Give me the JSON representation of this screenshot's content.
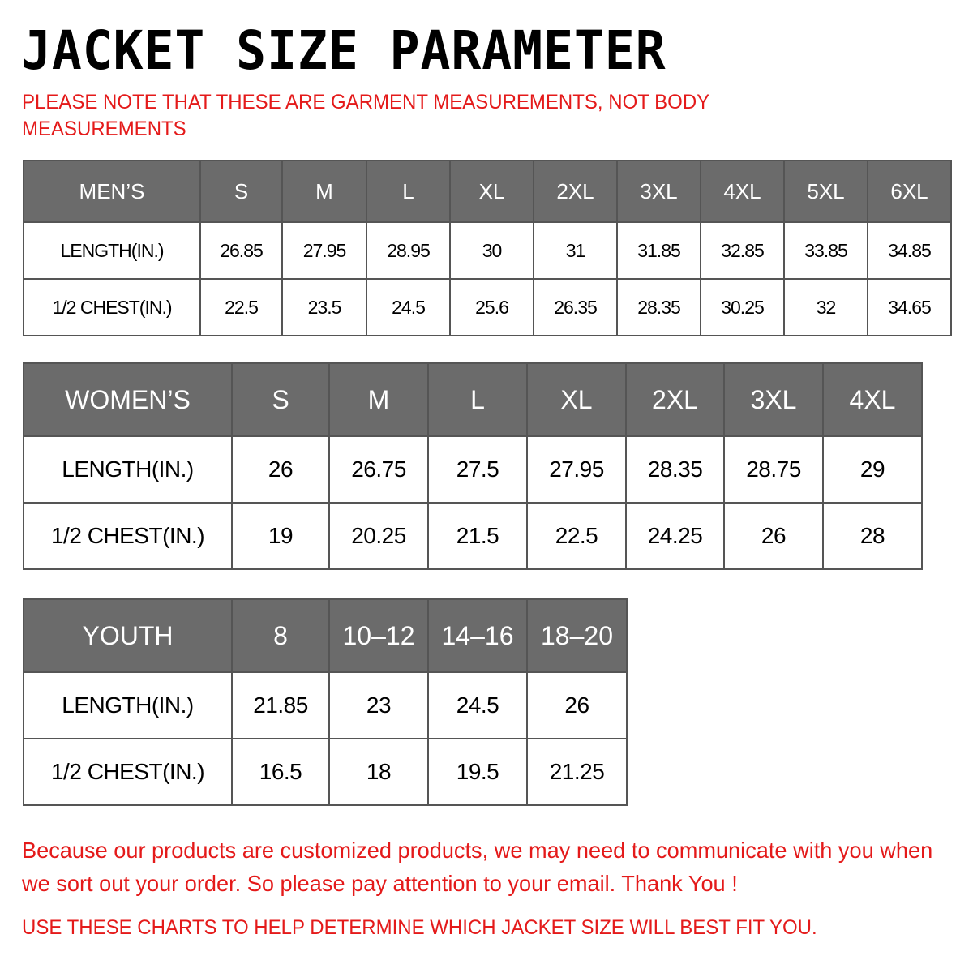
{
  "title": "JACKET SIZE PARAMETER",
  "note": "PLEASE NOTE THAT THESE ARE GARMENT MEASUREMENTS, NOT BODY MEASUREMENTS",
  "mens": {
    "header": "MEN’S",
    "sizes": [
      "S",
      "M",
      "L",
      "XL",
      "2XL",
      "3XL",
      "4XL",
      "5XL",
      "6XL"
    ],
    "rows": [
      {
        "label": "LENGTH(IN.)",
        "values": [
          "26.85",
          "27.95",
          "28.95",
          "30",
          "31",
          "31.85",
          "32.85",
          "33.85",
          "34.85"
        ]
      },
      {
        "label": "1/2 CHEST(IN.)",
        "values": [
          "22.5",
          "23.5",
          "24.5",
          "25.6",
          "26.35",
          "28.35",
          "30.25",
          "32",
          "34.65"
        ]
      }
    ]
  },
  "womens": {
    "header": "WOMEN’S",
    "sizes": [
      "S",
      "M",
      "L",
      "XL",
      "2XL",
      "3XL",
      "4XL"
    ],
    "rows": [
      {
        "label": "LENGTH(IN.)",
        "values": [
          "26",
          "26.75",
          "27.5",
          "27.95",
          "28.35",
          "28.75",
          "29"
        ]
      },
      {
        "label": "1/2 CHEST(IN.)",
        "values": [
          "19",
          "20.25",
          "21.5",
          "22.5",
          "24.25",
          "26",
          "28"
        ]
      }
    ]
  },
  "youth": {
    "header": "YOUTH",
    "sizes": [
      "8",
      "10–12",
      "14–16",
      "18–20"
    ],
    "rows": [
      {
        "label": "LENGTH(IN.)",
        "values": [
          "21.85",
          "23",
          "24.5",
          "26"
        ]
      },
      {
        "label": "1/2 CHEST(IN.)",
        "values": [
          "16.5",
          "18",
          "19.5",
          "21.25"
        ]
      }
    ]
  },
  "footer_1": "Because our products are customized products, we may need to communicate with you when we sort out your order. So please pay attention to your email. Thank You !",
  "footer_2": "USE THESE CHARTS TO HELP DETERMINE WHICH JACKET SIZE WILL BEST FIT YOU.",
  "colors": {
    "header_bg": "#6b6b6b",
    "note_red": "#e41a1a"
  }
}
